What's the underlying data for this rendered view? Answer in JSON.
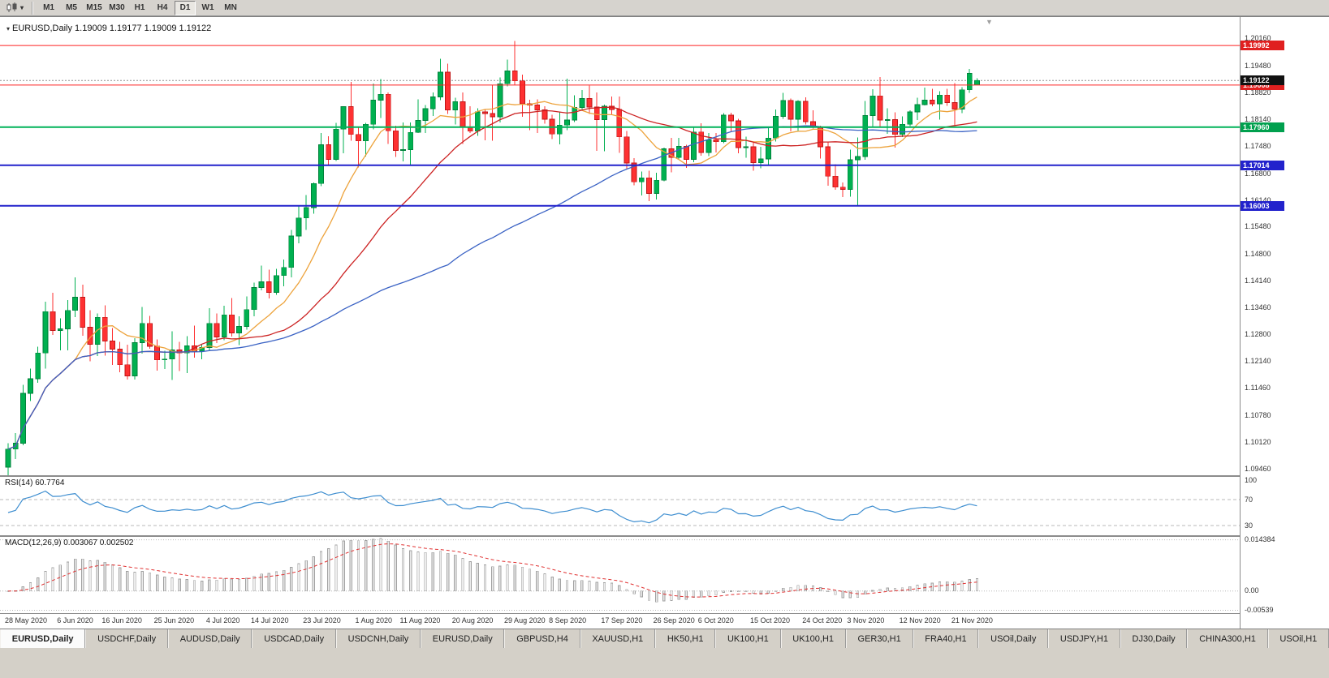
{
  "toolbar": {
    "timeframes": [
      "M1",
      "M5",
      "M15",
      "M30",
      "H1",
      "H4",
      "D1",
      "W1",
      "MN"
    ],
    "active_timeframe": "D1"
  },
  "chart": {
    "title_symbol": "EURUSD,Daily",
    "title_ohlc": "1.19009 1.19177 1.19009 1.19122"
  },
  "chart_data": {
    "type": "candlestick",
    "symbol": "EURUSD",
    "timeframe": "Daily",
    "y_range": [
      1.093,
      1.2066
    ],
    "up_color": "#00b050",
    "up_stroke": "#00813a",
    "down_color": "#fe3132",
    "down_stroke": "#bf1516",
    "price_axis_labels": [
      "1.20160",
      "1.19480",
      "1.18820",
      "1.18140",
      "1.17480",
      "1.16800",
      "1.16140",
      "1.15480",
      "1.14800",
      "1.14140",
      "1.13460",
      "1.12800",
      "1.12140",
      "1.11460",
      "1.10780",
      "1.10120",
      "1.09460"
    ],
    "hlines": [
      {
        "value": 1.19992,
        "label": "1.19992",
        "color": "#fe2020",
        "width": 1,
        "badge": "#e02020"
      },
      {
        "value": 1.19008,
        "label": "1.19008",
        "color": "#fe2020",
        "width": 1,
        "badge": "#e02020"
      },
      {
        "value": 1.1796,
        "label": "1.17960",
        "color": "#00b259",
        "width": 2,
        "badge": "#00a04e"
      },
      {
        "value": 1.17014,
        "label": "1.17014",
        "color": "#2222cc",
        "width": 2,
        "badge": "#2222cc"
      },
      {
        "value": 1.16003,
        "label": "1.16003",
        "color": "#2222cc",
        "width": 2,
        "badge": "#2222cc"
      }
    ],
    "bid_line": {
      "value": 1.19122,
      "label": "1.19122",
      "badge": "#111111",
      "color": "#909090"
    },
    "moving_averages": [
      {
        "name": "fast",
        "period": 10,
        "color": "#eda33c"
      },
      {
        "name": "mid",
        "period": 25,
        "color": "#cc2222"
      },
      {
        "name": "slow",
        "period": 60,
        "color": "#3a62c4"
      }
    ],
    "indicators": {
      "rsi": {
        "label": "RSI(14)",
        "value_text": "60.7764",
        "levels": [
          70,
          30
        ],
        "axis_labels": [
          "100",
          "70",
          "30"
        ],
        "range": [
          15,
          105
        ],
        "color": "#3e8ed0"
      },
      "macd": {
        "label": "MACD(12,26,9)",
        "values_text": "0.003067 0.002502",
        "axis_labels": [
          "0.014384",
          "0.00",
          "-0.00539"
        ],
        "range": [
          -0.0062,
          0.0152
        ],
        "fast": 12,
        "slow": 26,
        "signal": 9,
        "bar_color": "#ececec",
        "bar_stroke": "#a0a0a0",
        "signal_color": "#e03030"
      }
    },
    "date_labels": [
      {
        "text": "28 May 2020",
        "i": 0
      },
      {
        "text": "6 Jun 2020",
        "i": 7
      },
      {
        "text": "16 Jun 2020",
        "i": 13
      },
      {
        "text": "25 Jun 2020",
        "i": 20
      },
      {
        "text": "4 Jul 2020",
        "i": 27
      },
      {
        "text": "14 Jul 2020",
        "i": 33
      },
      {
        "text": "23 Jul 2020",
        "i": 40
      },
      {
        "text": "1 Aug 2020",
        "i": 47
      },
      {
        "text": "11 Aug 2020",
        "i": 53
      },
      {
        "text": "20 Aug 2020",
        "i": 60
      },
      {
        "text": "29 Aug 2020",
        "i": 67
      },
      {
        "text": "8 Sep 2020",
        "i": 73
      },
      {
        "text": "17 Sep 2020",
        "i": 80
      },
      {
        "text": "26 Sep 2020",
        "i": 87
      },
      {
        "text": "6 Oct 2020",
        "i": 93
      },
      {
        "text": "15 Oct 2020",
        "i": 100
      },
      {
        "text": "24 Oct 2020",
        "i": 107
      },
      {
        "text": "3 Nov 2020",
        "i": 113
      },
      {
        "text": "12 Nov 2020",
        "i": 120
      },
      {
        "text": "21 Nov 2020",
        "i": 127
      }
    ],
    "candles": [
      [
        1.095,
        1.101,
        1.093,
        1.0995
      ],
      [
        1.0995,
        1.1035,
        1.097,
        1.101
      ],
      [
        1.101,
        1.1155,
        1.1005,
        1.1134
      ],
      [
        1.1134,
        1.1195,
        1.1115,
        1.117
      ],
      [
        1.117,
        1.125,
        1.116,
        1.1234
      ],
      [
        1.1234,
        1.1362,
        1.1195,
        1.1337
      ],
      [
        1.1337,
        1.1384,
        1.1279,
        1.129
      ],
      [
        1.129,
        1.132,
        1.1241,
        1.1294
      ],
      [
        1.1294,
        1.1366,
        1.1241,
        1.134
      ],
      [
        1.134,
        1.1422,
        1.1323,
        1.1373
      ],
      [
        1.1373,
        1.1404,
        1.1277,
        1.1298
      ],
      [
        1.1298,
        1.1341,
        1.1213,
        1.1256
      ],
      [
        1.1256,
        1.1333,
        1.1227,
        1.1323
      ],
      [
        1.1323,
        1.1353,
        1.1228,
        1.1264
      ],
      [
        1.1264,
        1.1296,
        1.1204,
        1.1244
      ],
      [
        1.1244,
        1.1262,
        1.1186,
        1.1205
      ],
      [
        1.1205,
        1.1255,
        1.1168,
        1.1177
      ],
      [
        1.1177,
        1.1271,
        1.1168,
        1.126
      ],
      [
        1.126,
        1.1349,
        1.1233,
        1.1308
      ],
      [
        1.1308,
        1.1326,
        1.1245,
        1.1251
      ],
      [
        1.1251,
        1.1268,
        1.119,
        1.1217
      ],
      [
        1.1217,
        1.124,
        1.1194,
        1.1219
      ],
      [
        1.1219,
        1.1288,
        1.1167,
        1.1242
      ],
      [
        1.1242,
        1.1262,
        1.1189,
        1.1234
      ],
      [
        1.1234,
        1.1276,
        1.1184,
        1.1252
      ],
      [
        1.1252,
        1.1302,
        1.1223,
        1.1239
      ],
      [
        1.1239,
        1.1255,
        1.1219,
        1.1248
      ],
      [
        1.1248,
        1.1346,
        1.124,
        1.1308
      ],
      [
        1.1308,
        1.1333,
        1.1259,
        1.1274
      ],
      [
        1.1274,
        1.1352,
        1.1266,
        1.1329
      ],
      [
        1.1329,
        1.1371,
        1.1275,
        1.1284
      ],
      [
        1.1284,
        1.1325,
        1.1254,
        1.13
      ],
      [
        1.13,
        1.1375,
        1.1292,
        1.1342
      ],
      [
        1.1342,
        1.1409,
        1.1325,
        1.1397
      ],
      [
        1.1397,
        1.1452,
        1.139,
        1.1411
      ],
      [
        1.1411,
        1.1442,
        1.137,
        1.1385
      ],
      [
        1.1385,
        1.1444,
        1.1379,
        1.1427
      ],
      [
        1.1427,
        1.1467,
        1.14,
        1.1447
      ],
      [
        1.1447,
        1.154,
        1.1422,
        1.1525
      ],
      [
        1.1525,
        1.1601,
        1.1507,
        1.157
      ],
      [
        1.157,
        1.1627,
        1.154,
        1.1596
      ],
      [
        1.1596,
        1.1658,
        1.1581,
        1.1656
      ],
      [
        1.1656,
        1.1781,
        1.1649,
        1.1752
      ],
      [
        1.1752,
        1.1773,
        1.1701,
        1.1716
      ],
      [
        1.1716,
        1.1807,
        1.1712,
        1.1791
      ],
      [
        1.1791,
        1.1848,
        1.1731,
        1.1847
      ],
      [
        1.1847,
        1.1909,
        1.1762,
        1.1778
      ],
      [
        1.1778,
        1.1797,
        1.1696,
        1.1762
      ],
      [
        1.1762,
        1.1807,
        1.1723,
        1.1803
      ],
      [
        1.1803,
        1.1905,
        1.1791,
        1.1863
      ],
      [
        1.1863,
        1.1916,
        1.1819,
        1.1878
      ],
      [
        1.1878,
        1.1882,
        1.1754,
        1.1787
      ],
      [
        1.1787,
        1.18,
        1.1722,
        1.1738
      ],
      [
        1.1738,
        1.1808,
        1.1711,
        1.174
      ],
      [
        1.174,
        1.1808,
        1.1701,
        1.1783
      ],
      [
        1.1783,
        1.1865,
        1.1782,
        1.1813
      ],
      [
        1.1813,
        1.1851,
        1.1782,
        1.1842
      ],
      [
        1.1842,
        1.1882,
        1.1824,
        1.1871
      ],
      [
        1.1871,
        1.1966,
        1.1863,
        1.1933
      ],
      [
        1.1933,
        1.1954,
        1.1829,
        1.1839
      ],
      [
        1.1839,
        1.1869,
        1.1803,
        1.1859
      ],
      [
        1.1859,
        1.1882,
        1.1754,
        1.1796
      ],
      [
        1.1796,
        1.1848,
        1.1782,
        1.1786
      ],
      [
        1.1786,
        1.1843,
        1.1774,
        1.1834
      ],
      [
        1.1834,
        1.1839,
        1.1763,
        1.183
      ],
      [
        1.183,
        1.1901,
        1.1762,
        1.1822
      ],
      [
        1.1822,
        1.192,
        1.1808,
        1.1904
      ],
      [
        1.1904,
        1.1964,
        1.1898,
        1.1936
      ],
      [
        1.1936,
        1.2011,
        1.1901,
        1.1911
      ],
      [
        1.1911,
        1.1927,
        1.1822,
        1.1854
      ],
      [
        1.1854,
        1.1864,
        1.1789,
        1.1851
      ],
      [
        1.1851,
        1.1865,
        1.1781,
        1.1839
      ],
      [
        1.1839,
        1.1848,
        1.1805,
        1.1816
      ],
      [
        1.1816,
        1.1827,
        1.1766,
        1.1779
      ],
      [
        1.1779,
        1.1834,
        1.1753,
        1.1801
      ],
      [
        1.1801,
        1.1917,
        1.1789,
        1.1814
      ],
      [
        1.1814,
        1.1875,
        1.1809,
        1.1845
      ],
      [
        1.1845,
        1.1888,
        1.1839,
        1.1867
      ],
      [
        1.1867,
        1.19,
        1.1829,
        1.1846
      ],
      [
        1.1846,
        1.1882,
        1.1737,
        1.1815
      ],
      [
        1.1815,
        1.1852,
        1.1736,
        1.1848
      ],
      [
        1.1848,
        1.1872,
        1.1826,
        1.184
      ],
      [
        1.184,
        1.1872,
        1.1732,
        1.1772
      ],
      [
        1.1772,
        1.1787,
        1.1692,
        1.1707
      ],
      [
        1.1707,
        1.1719,
        1.1651,
        1.166
      ],
      [
        1.166,
        1.1686,
        1.1626,
        1.167
      ],
      [
        1.167,
        1.1688,
        1.1612,
        1.1631
      ],
      [
        1.1631,
        1.1683,
        1.1616,
        1.1664
      ],
      [
        1.1664,
        1.1745,
        1.1661,
        1.1742
      ],
      [
        1.1742,
        1.1769,
        1.1684,
        1.1721
      ],
      [
        1.1721,
        1.1769,
        1.1717,
        1.1748
      ],
      [
        1.1748,
        1.1752,
        1.1695,
        1.1716
      ],
      [
        1.1716,
        1.1798,
        1.1709,
        1.1784
      ],
      [
        1.1784,
        1.1806,
        1.1725,
        1.1733
      ],
      [
        1.1733,
        1.1781,
        1.1724,
        1.1765
      ],
      [
        1.1765,
        1.1782,
        1.1733,
        1.176
      ],
      [
        1.176,
        1.1831,
        1.1756,
        1.1826
      ],
      [
        1.1826,
        1.1832,
        1.1786,
        1.1812
      ],
      [
        1.1812,
        1.1817,
        1.1731,
        1.1745
      ],
      [
        1.1745,
        1.1772,
        1.172,
        1.1747
      ],
      [
        1.1747,
        1.1758,
        1.1688,
        1.1708
      ],
      [
        1.1708,
        1.1747,
        1.1694,
        1.1717
      ],
      [
        1.1717,
        1.1794,
        1.1703,
        1.1769
      ],
      [
        1.1769,
        1.184,
        1.176,
        1.1823
      ],
      [
        1.1823,
        1.1881,
        1.1817,
        1.1862
      ],
      [
        1.1862,
        1.1867,
        1.1786,
        1.1816
      ],
      [
        1.1816,
        1.1863,
        1.1787,
        1.186
      ],
      [
        1.186,
        1.187,
        1.1803,
        1.181
      ],
      [
        1.181,
        1.1838,
        1.1793,
        1.1795
      ],
      [
        1.1795,
        1.18,
        1.1718,
        1.1747
      ],
      [
        1.1747,
        1.1759,
        1.165,
        1.1674
      ],
      [
        1.1674,
        1.1704,
        1.164,
        1.1647
      ],
      [
        1.1647,
        1.1658,
        1.1622,
        1.1641
      ],
      [
        1.1641,
        1.174,
        1.1623,
        1.1715
      ],
      [
        1.1715,
        1.177,
        1.1602,
        1.1723
      ],
      [
        1.1723,
        1.1861,
        1.1715,
        1.1825
      ],
      [
        1.1825,
        1.189,
        1.1795,
        1.1874
      ],
      [
        1.1874,
        1.1921,
        1.1795,
        1.1814
      ],
      [
        1.1814,
        1.1843,
        1.1779,
        1.1815
      ],
      [
        1.1815,
        1.1833,
        1.1745,
        1.1778
      ],
      [
        1.1778,
        1.1823,
        1.1771,
        1.1803
      ],
      [
        1.1803,
        1.1838,
        1.1799,
        1.1834
      ],
      [
        1.1834,
        1.1869,
        1.1814,
        1.1852
      ],
      [
        1.1852,
        1.1894,
        1.185,
        1.1863
      ],
      [
        1.1863,
        1.1891,
        1.1848,
        1.1854
      ],
      [
        1.1854,
        1.1885,
        1.1815,
        1.1876
      ],
      [
        1.1876,
        1.1891,
        1.1849,
        1.1857
      ],
      [
        1.1857,
        1.1906,
        1.1799,
        1.1841
      ],
      [
        1.1841,
        1.1895,
        1.1831,
        1.1889
      ],
      [
        1.1889,
        1.1941,
        1.1881,
        1.193
      ],
      [
        1.19009,
        1.19177,
        1.19009,
        1.19122
      ]
    ]
  },
  "tabs": [
    {
      "label": "EURUSD,Daily",
      "active": true
    },
    {
      "label": "USDCHF,Daily",
      "active": false
    },
    {
      "label": "AUDUSD,Daily",
      "active": false
    },
    {
      "label": "USDCAD,Daily",
      "active": false
    },
    {
      "label": "USDCNH,Daily",
      "active": false
    },
    {
      "label": "EURUSD,Daily",
      "active": false
    },
    {
      "label": "GBPUSD,H4",
      "active": false
    },
    {
      "label": "XAUUSD,H1",
      "active": false
    },
    {
      "label": "HK50,H1",
      "active": false
    },
    {
      "label": "UK100,H1",
      "active": false
    },
    {
      "label": "UK100,H1",
      "active": false
    },
    {
      "label": "GER30,H1",
      "active": false
    },
    {
      "label": "FRA40,H1",
      "active": false
    },
    {
      "label": "USOil,Daily",
      "active": false
    },
    {
      "label": "USDJPY,H1",
      "active": false
    },
    {
      "label": "DJ30,Daily",
      "active": false
    },
    {
      "label": "CHINA300,H1",
      "active": false
    },
    {
      "label": "USOil,H1",
      "active": false
    }
  ]
}
